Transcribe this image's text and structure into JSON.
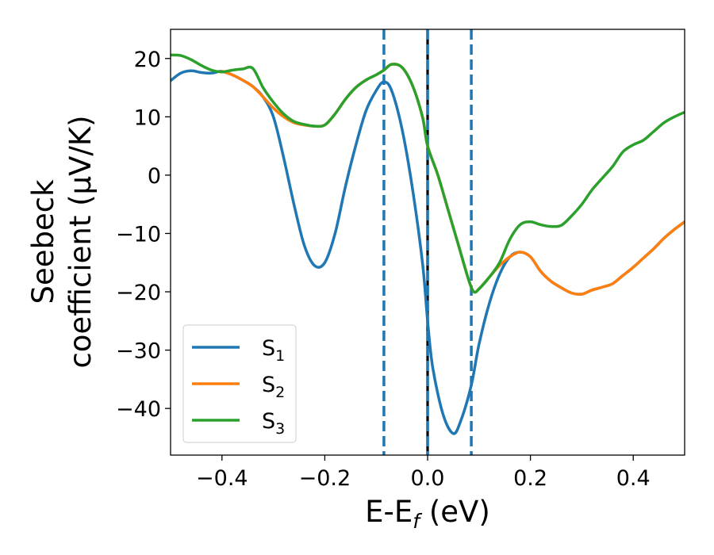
{
  "chart_data": {
    "type": "line",
    "xlabel": "E-E",
    "xlabel_sub": "f",
    "xlabel_unit": " (eV)",
    "ylabel_line1": "Seebeck",
    "ylabel_line2": "coefficient  (μV/K)",
    "xlim": [
      -0.5,
      0.5
    ],
    "ylim": [
      -48,
      25
    ],
    "xticks": [
      -0.4,
      -0.2,
      0.0,
      0.2,
      0.4
    ],
    "xtick_labels": [
      "−0.4",
      "−0.2",
      "0.0",
      "0.2",
      "0.4"
    ],
    "yticks": [
      20,
      10,
      0,
      -10,
      -20,
      -30,
      -40
    ],
    "ytick_labels": [
      "20",
      "10",
      "0",
      "−10",
      "−20",
      "−30",
      "−40"
    ],
    "grid": false,
    "legend_position": "lower-left",
    "vlines": [
      {
        "x": -0.085,
        "style": "dashed",
        "color": "#1f77b4"
      },
      {
        "x": 0.0,
        "style": "solid",
        "color": "#000000"
      },
      {
        "x": 0.0,
        "style": "dashed",
        "color": "#1f77b4"
      },
      {
        "x": 0.085,
        "style": "dashed",
        "color": "#1f77b4"
      }
    ],
    "series": [
      {
        "name": "S",
        "sub": "1",
        "color": "#1f77b4",
        "points": [
          [
            -0.5,
            16.2
          ],
          [
            -0.48,
            17.5
          ],
          [
            -0.46,
            17.9
          ],
          [
            -0.44,
            17.6
          ],
          [
            -0.42,
            17.5
          ],
          [
            -0.4,
            17.8
          ],
          [
            -0.38,
            17.2
          ],
          [
            -0.36,
            16.3
          ],
          [
            -0.34,
            15.2
          ],
          [
            -0.32,
            13.4
          ],
          [
            -0.3,
            10
          ],
          [
            -0.28,
            3
          ],
          [
            -0.26,
            -5
          ],
          [
            -0.24,
            -12
          ],
          [
            -0.22,
            -15.5
          ],
          [
            -0.2,
            -15
          ],
          [
            -0.18,
            -10
          ],
          [
            -0.16,
            -2
          ],
          [
            -0.14,
            5
          ],
          [
            -0.12,
            11
          ],
          [
            -0.1,
            14.5
          ],
          [
            -0.085,
            16
          ],
          [
            -0.07,
            14.5
          ],
          [
            -0.05,
            8
          ],
          [
            -0.03,
            -2
          ],
          [
            -0.01,
            -15
          ],
          [
            0.0,
            -25
          ],
          [
            0.01,
            -33
          ],
          [
            0.03,
            -41
          ],
          [
            0.05,
            -44.3
          ],
          [
            0.065,
            -42
          ],
          [
            0.085,
            -36
          ],
          [
            0.1,
            -29
          ],
          [
            0.12,
            -22
          ],
          [
            0.14,
            -17
          ],
          [
            0.16,
            -14
          ],
          [
            0.18,
            -13.2
          ],
          [
            0.2,
            -14
          ],
          [
            0.22,
            -16.5
          ],
          [
            0.24,
            -18.2
          ],
          [
            0.26,
            -19.3
          ],
          [
            0.28,
            -20.2
          ],
          [
            0.3,
            -20.4
          ],
          [
            0.32,
            -19.7
          ],
          [
            0.34,
            -19.2
          ],
          [
            0.36,
            -18.6
          ],
          [
            0.38,
            -17.2
          ],
          [
            0.4,
            -15.8
          ],
          [
            0.42,
            -14.2
          ],
          [
            0.44,
            -12.6
          ],
          [
            0.46,
            -10.8
          ],
          [
            0.48,
            -9.3
          ],
          [
            0.5,
            -8
          ]
        ]
      },
      {
        "name": "S",
        "sub": "2",
        "color": "#ff7f0e",
        "points": [
          [
            -0.4,
            17.8
          ],
          [
            -0.38,
            17.2
          ],
          [
            -0.36,
            16.3
          ],
          [
            -0.34,
            15.2
          ],
          [
            -0.32,
            13.4
          ],
          [
            -0.3,
            11.5
          ],
          [
            -0.28,
            10
          ],
          [
            -0.26,
            9
          ],
          [
            -0.24,
            8.6
          ],
          [
            -0.22,
            8.4
          ],
          [
            -0.2,
            8.6
          ],
          [
            -0.18,
            10.5
          ],
          [
            -0.16,
            13
          ],
          [
            -0.14,
            15
          ],
          [
            -0.12,
            16.3
          ],
          [
            -0.1,
            17.2
          ],
          [
            -0.085,
            18
          ],
          [
            -0.07,
            19
          ],
          [
            -0.05,
            18.5
          ],
          [
            -0.03,
            15.5
          ],
          [
            -0.01,
            10
          ],
          [
            0.0,
            5
          ],
          [
            0.02,
            0
          ],
          [
            0.04,
            -6
          ],
          [
            0.06,
            -12
          ],
          [
            0.08,
            -18
          ],
          [
            0.09,
            -20
          ],
          [
            0.1,
            -19.5
          ],
          [
            0.12,
            -17.5
          ],
          [
            0.14,
            -15.5
          ],
          [
            0.16,
            -14
          ],
          [
            0.18,
            -13.2
          ],
          [
            0.2,
            -14
          ],
          [
            0.22,
            -16.5
          ],
          [
            0.24,
            -18.2
          ],
          [
            0.26,
            -19.3
          ],
          [
            0.28,
            -20.2
          ],
          [
            0.3,
            -20.4
          ],
          [
            0.32,
            -19.7
          ],
          [
            0.34,
            -19.2
          ],
          [
            0.36,
            -18.6
          ],
          [
            0.38,
            -17.2
          ],
          [
            0.4,
            -15.8
          ],
          [
            0.42,
            -14.2
          ],
          [
            0.44,
            -12.6
          ],
          [
            0.46,
            -10.8
          ],
          [
            0.48,
            -9.3
          ],
          [
            0.5,
            -8
          ]
        ]
      },
      {
        "name": "S",
        "sub": "3",
        "color": "#2ca02c",
        "points": [
          [
            -0.5,
            20.6
          ],
          [
            -0.48,
            20.5
          ],
          [
            -0.46,
            19.8
          ],
          [
            -0.44,
            18.8
          ],
          [
            -0.42,
            18
          ],
          [
            -0.4,
            17.7
          ],
          [
            -0.38,
            18
          ],
          [
            -0.36,
            18.2
          ],
          [
            -0.34,
            18.3
          ],
          [
            -0.32,
            15
          ],
          [
            -0.3,
            12.5
          ],
          [
            -0.28,
            10.5
          ],
          [
            -0.26,
            9.2
          ],
          [
            -0.24,
            8.7
          ],
          [
            -0.22,
            8.4
          ],
          [
            -0.2,
            8.6
          ],
          [
            -0.18,
            10.5
          ],
          [
            -0.16,
            13
          ],
          [
            -0.14,
            15
          ],
          [
            -0.12,
            16.3
          ],
          [
            -0.1,
            17.2
          ],
          [
            -0.085,
            18
          ],
          [
            -0.07,
            19
          ],
          [
            -0.05,
            18.5
          ],
          [
            -0.03,
            15.5
          ],
          [
            -0.01,
            10
          ],
          [
            0.0,
            5
          ],
          [
            0.02,
            0
          ],
          [
            0.04,
            -6
          ],
          [
            0.06,
            -12
          ],
          [
            0.08,
            -18
          ],
          [
            0.09,
            -20
          ],
          [
            0.1,
            -19.5
          ],
          [
            0.12,
            -17.5
          ],
          [
            0.14,
            -15
          ],
          [
            0.16,
            -11
          ],
          [
            0.18,
            -8.5
          ],
          [
            0.2,
            -8
          ],
          [
            0.22,
            -8.5
          ],
          [
            0.24,
            -8.8
          ],
          [
            0.26,
            -8.6
          ],
          [
            0.28,
            -7
          ],
          [
            0.3,
            -5
          ],
          [
            0.32,
            -2.5
          ],
          [
            0.34,
            -0.5
          ],
          [
            0.36,
            1.5
          ],
          [
            0.38,
            4
          ],
          [
            0.4,
            5.2
          ],
          [
            0.42,
            6
          ],
          [
            0.44,
            7.5
          ],
          [
            0.46,
            9
          ],
          [
            0.48,
            10
          ],
          [
            0.5,
            10.8
          ]
        ]
      }
    ]
  }
}
